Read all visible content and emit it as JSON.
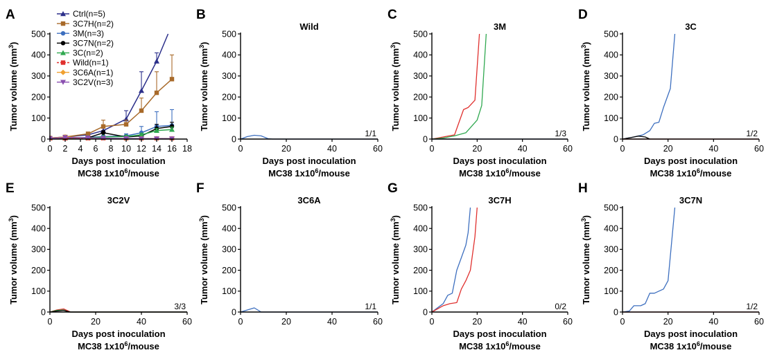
{
  "chart_data": [
    {
      "panel": "A",
      "type": "line",
      "xlabel": "Days post inoculation",
      "xlabel2": "MC38 1x10^6/mouse",
      "ylabel": "Tumor volume (mm^3)",
      "xlim": [
        0,
        18
      ],
      "ylim": [
        0,
        500
      ],
      "xticks": [
        0,
        2,
        4,
        6,
        8,
        10,
        12,
        14,
        16,
        18
      ],
      "yticks": [
        0,
        100,
        200,
        300,
        400,
        500
      ],
      "legend_position": "top-left",
      "series": [
        {
          "name": "Ctrl(n=5)",
          "color": "#2b2f8a",
          "marker": "triangle-up",
          "x": [
            0,
            2,
            5,
            7,
            10,
            12,
            14,
            15.5
          ],
          "y": [
            5,
            10,
            20,
            40,
            95,
            230,
            370,
            510
          ],
          "err": [
            0,
            3,
            8,
            20,
            40,
            90,
            40,
            0
          ]
        },
        {
          "name": "3C7H(n=2)",
          "color": "#a86a2a",
          "marker": "square",
          "x": [
            0,
            2,
            5,
            7,
            10,
            12,
            14,
            16
          ],
          "y": [
            5,
            10,
            25,
            60,
            70,
            135,
            220,
            285
          ],
          "err": [
            0,
            3,
            8,
            30,
            20,
            60,
            100,
            115
          ]
        },
        {
          "name": "3M(n=3)",
          "color": "#3d6fbf",
          "marker": "circle",
          "x": [
            0,
            2,
            5,
            7,
            10,
            12,
            14,
            16
          ],
          "y": [
            2,
            5,
            8,
            12,
            15,
            30,
            60,
            65
          ],
          "err": [
            0,
            2,
            3,
            5,
            10,
            30,
            70,
            75
          ]
        },
        {
          "name": "3C7N(n=2)",
          "color": "#000000",
          "marker": "circle",
          "x": [
            0,
            2,
            5,
            7,
            10,
            12,
            14,
            16
          ],
          "y": [
            2,
            4,
            6,
            30,
            10,
            15,
            50,
            60
          ],
          "err": [
            0,
            2,
            3,
            10,
            5,
            5,
            20,
            20
          ]
        },
        {
          "name": "3C(n=2)",
          "color": "#2fa84f",
          "marker": "triangle-up",
          "x": [
            0,
            2,
            5,
            7,
            10,
            12,
            14,
            16
          ],
          "y": [
            2,
            4,
            6,
            10,
            12,
            20,
            40,
            45
          ],
          "err": [
            0,
            1,
            2,
            3,
            5,
            8,
            10,
            12
          ]
        },
        {
          "name": "Wild(n=1)",
          "color": "#e0302e",
          "marker": "square",
          "dashed": true,
          "x": [
            0,
            2,
            5,
            7,
            10,
            12,
            14,
            16
          ],
          "y": [
            2,
            3,
            4,
            3,
            2,
            2,
            2,
            2
          ]
        },
        {
          "name": "3C6A(n=1)",
          "color": "#f0a030",
          "marker": "diamond",
          "x": [
            0,
            2,
            5,
            7,
            10,
            12,
            14,
            16
          ],
          "y": [
            3,
            10,
            5,
            3,
            2,
            2,
            2,
            2
          ]
        },
        {
          "name": "3C2V(n=3)",
          "color": "#8a4fb0",
          "marker": "triangle-down",
          "x": [
            0,
            2,
            5,
            7,
            10,
            12,
            14,
            16
          ],
          "y": [
            3,
            8,
            6,
            4,
            3,
            2,
            2,
            2
          ]
        }
      ]
    },
    {
      "panel": "B",
      "type": "line",
      "title": "Wild",
      "xlabel": "Days post inoculation",
      "xlabel2": "MC38 1x10^6/mouse",
      "ylabel": "Tumor volume (mm^3)",
      "xlim": [
        0,
        60
      ],
      "ylim": [
        0,
        500
      ],
      "xticks": [
        0,
        20,
        40,
        60
      ],
      "yticks": [
        0,
        100,
        200,
        300,
        400,
        500
      ],
      "annotation": "1/1",
      "series": [
        {
          "color": "#3d6fbf",
          "x": [
            0,
            3,
            6,
            9,
            12,
            14,
            60
          ],
          "y": [
            0,
            12,
            18,
            15,
            2,
            0,
            0
          ]
        }
      ]
    },
    {
      "panel": "C",
      "type": "line",
      "title": "3M",
      "xlabel": "Days post inoculation",
      "xlabel2": "MC38 1x10^6/mouse",
      "ylabel": "Tumor volume (mm^3)",
      "xlim": [
        0,
        60
      ],
      "ylim": [
        0,
        500
      ],
      "xticks": [
        0,
        20,
        40,
        60
      ],
      "yticks": [
        0,
        100,
        200,
        300,
        400,
        500
      ],
      "annotation": "1/3",
      "series": [
        {
          "color": "#e0302e",
          "x": [
            0,
            5,
            10,
            14,
            16,
            19,
            21
          ],
          "y": [
            0,
            10,
            20,
            140,
            150,
            185,
            500
          ]
        },
        {
          "color": "#2fa84f",
          "x": [
            0,
            5,
            10,
            15,
            20,
            22,
            24
          ],
          "y": [
            0,
            5,
            15,
            30,
            90,
            160,
            500
          ]
        },
        {
          "color": "#3d6fbf",
          "x": [
            0,
            60
          ],
          "y": [
            0,
            0
          ]
        }
      ]
    },
    {
      "panel": "D",
      "type": "line",
      "title": "3C",
      "xlabel": "Days post inoculation",
      "xlabel2": "MC38 1x10^6/mouse",
      "ylabel": "Tumor volume (mm^3)",
      "xlim": [
        0,
        60
      ],
      "ylim": [
        0,
        500
      ],
      "xticks": [
        0,
        20,
        40,
        60
      ],
      "yticks": [
        0,
        100,
        200,
        300,
        400,
        500
      ],
      "annotation": "1/2",
      "series": [
        {
          "color": "#3d6fbf",
          "x": [
            0,
            5,
            9,
            12,
            14,
            16,
            18,
            21,
            23
          ],
          "y": [
            0,
            10,
            20,
            40,
            75,
            80,
            150,
            240,
            500
          ]
        },
        {
          "color": "#000000",
          "x": [
            0,
            4,
            7,
            10,
            12
          ],
          "y": [
            0,
            8,
            14,
            10,
            0
          ]
        },
        {
          "color": "#e0302e",
          "x": [
            0,
            60
          ],
          "y": [
            0,
            0
          ]
        }
      ]
    },
    {
      "panel": "E",
      "type": "line",
      "title": "3C2V",
      "xlabel": "Days post inoculation",
      "xlabel2": "MC38 1x10^6/mouse",
      "ylabel": "Tumor volume (mm^3)",
      "xlim": [
        0,
        60
      ],
      "ylim": [
        0,
        500
      ],
      "xticks": [
        0,
        20,
        40,
        60
      ],
      "yticks": [
        0,
        100,
        200,
        300,
        400,
        500
      ],
      "annotation": "3/3",
      "series": [
        {
          "color": "#e0302e",
          "x": [
            0,
            3,
            6,
            9,
            60
          ],
          "y": [
            0,
            10,
            15,
            0,
            0
          ]
        },
        {
          "color": "#2fa84f",
          "x": [
            0,
            3,
            6,
            8,
            60
          ],
          "y": [
            0,
            8,
            10,
            0,
            0
          ]
        },
        {
          "color": "#000000",
          "x": [
            0,
            3,
            6,
            9,
            60
          ],
          "y": [
            0,
            5,
            8,
            0,
            0
          ]
        }
      ]
    },
    {
      "panel": "F",
      "type": "line",
      "title": "3C6A",
      "xlabel": "",
      "xlabel2": "",
      "ylabel": "Tumor volume (mm^3)",
      "xlim": [
        0,
        60
      ],
      "ylim": [
        0,
        500
      ],
      "xticks": [
        0,
        20,
        40,
        60
      ],
      "yticks": [
        0,
        100,
        200,
        300,
        400,
        500
      ],
      "annotation": "1/1",
      "series": [
        {
          "color": "#3d6fbf",
          "x": [
            0,
            3,
            6,
            9,
            60
          ],
          "y": [
            0,
            10,
            20,
            0,
            0
          ]
        }
      ]
    },
    {
      "panel": "G",
      "type": "line",
      "title": "3C7H",
      "xlabel": "Days post inoculation",
      "xlabel2": "MC38 1x10^6/mouse",
      "ylabel": "Tumor volume (mm^3)",
      "xlim": [
        0,
        60
      ],
      "ylim": [
        0,
        500
      ],
      "xticks": [
        0,
        20,
        40,
        60
      ],
      "yticks": [
        0,
        100,
        200,
        300,
        400,
        500
      ],
      "annotation": "0/2",
      "series": [
        {
          "color": "#3d6fbf",
          "x": [
            0,
            5,
            7,
            9,
            11,
            13,
            15,
            16,
            17
          ],
          "y": [
            0,
            40,
            80,
            90,
            200,
            260,
            320,
            380,
            500
          ]
        },
        {
          "color": "#e0302e",
          "x": [
            0,
            5,
            8,
            11,
            13,
            15,
            17,
            19,
            20
          ],
          "y": [
            0,
            30,
            40,
            45,
            110,
            150,
            200,
            360,
            500
          ]
        }
      ]
    },
    {
      "panel": "H",
      "type": "line",
      "title": "3C7N",
      "xlabel": "Days post inoculation",
      "xlabel2": "MC38 1x10^6/mouse",
      "ylabel": "Tumor volume (mm^3)",
      "xlim": [
        0,
        60
      ],
      "ylim": [
        0,
        500
      ],
      "xticks": [
        0,
        20,
        40,
        60
      ],
      "yticks": [
        0,
        100,
        200,
        300,
        400,
        500
      ],
      "annotation": "1/2",
      "series": [
        {
          "color": "#3d6fbf",
          "x": [
            0,
            3,
            5,
            8,
            10,
            12,
            14,
            16,
            18,
            20,
            23
          ],
          "y": [
            0,
            5,
            30,
            30,
            40,
            90,
            90,
            100,
            110,
            150,
            500
          ]
        },
        {
          "color": "#e0302e",
          "x": [
            0,
            60
          ],
          "y": [
            0,
            0
          ]
        }
      ]
    }
  ]
}
